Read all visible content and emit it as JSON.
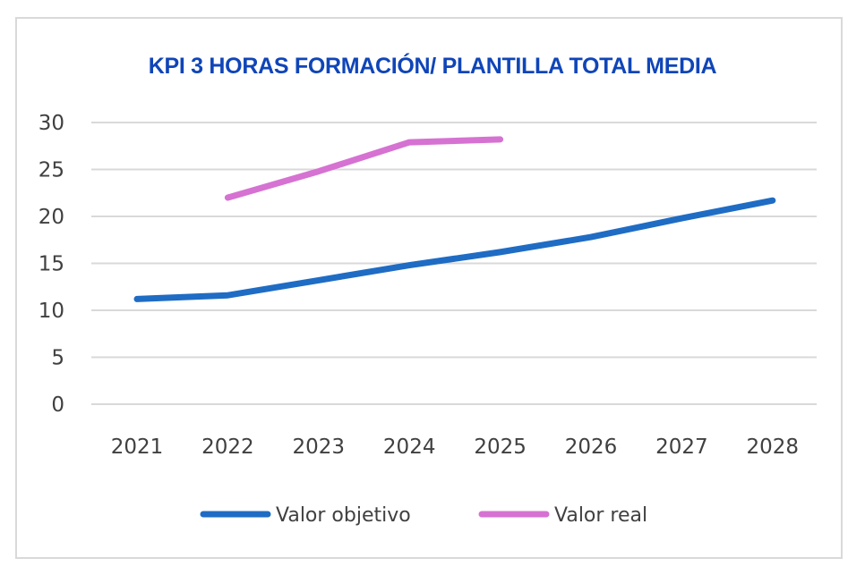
{
  "chart_data": {
    "type": "line",
    "title": "KPI 3 HORAS FORMACIÓN/ PLANTILLA TOTAL MEDIA",
    "categories": [
      "2021",
      "2022",
      "2023",
      "2024",
      "2025",
      "2026",
      "2027",
      "2028"
    ],
    "yticks": [
      "0",
      "5",
      "10",
      "15",
      "20",
      "25",
      "30"
    ],
    "ylim": [
      0,
      30
    ],
    "grid": true,
    "legend_position": "bottom",
    "series": [
      {
        "name": "Valor objetivo",
        "color": "#1f6cc4",
        "values": [
          11.2,
          11.6,
          13.2,
          14.8,
          16.2,
          17.8,
          19.8,
          21.7
        ]
      },
      {
        "name": "Valor real",
        "color": "#d672d2",
        "values": [
          null,
          22.0,
          24.8,
          27.9,
          28.2,
          null,
          null,
          null
        ]
      }
    ]
  }
}
